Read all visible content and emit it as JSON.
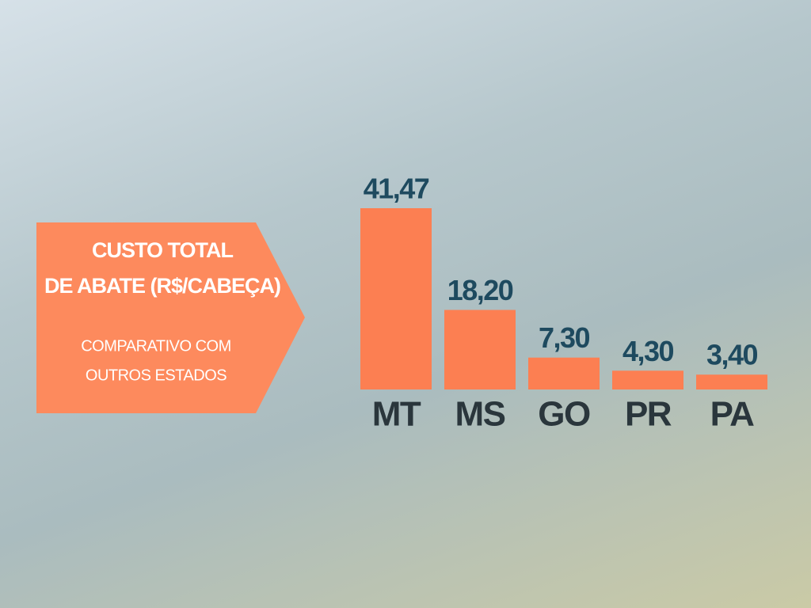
{
  "chart_data": {
    "type": "bar",
    "title": [
      "CUSTO TOTAL",
      "DE ABATE (R$/CABEÇA)"
    ],
    "subtitle": [
      "COMPARATIVO COM",
      "OUTROS ESTADOS"
    ],
    "categories": [
      "MT",
      "MS",
      "GO",
      "PR",
      "PA"
    ],
    "values": [
      41.47,
      18.2,
      7.3,
      4.3,
      3.4
    ],
    "value_labels": [
      "41,47",
      "18,20",
      "7,30",
      "4,30",
      "3,40"
    ],
    "color": "#fc7f52"
  }
}
